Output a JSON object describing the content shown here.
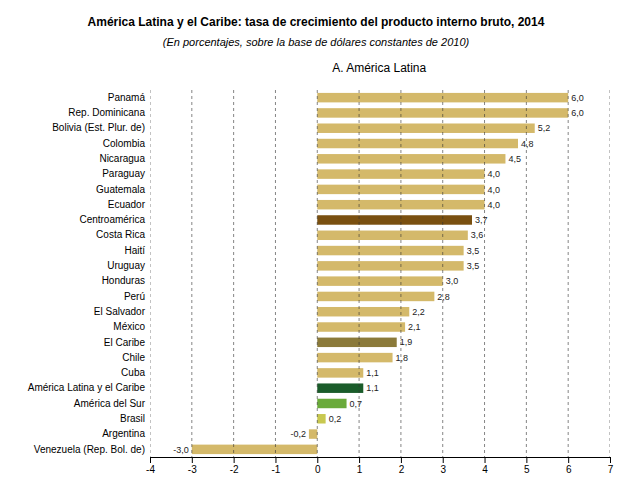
{
  "chart_data": {
    "type": "bar",
    "orientation": "horizontal",
    "title": "América Latina y el Caribe: tasa de crecimiento del producto interno bruto, 2014",
    "subtitle": "(En porcentajes, sobre la base de dólares constantes de 2010)",
    "annotations": [
      "A. América Latina"
    ],
    "categories": [
      "Venezuela (Rep. Bol. de)",
      "Argentina",
      "Brasil",
      "América del Sur",
      "América Latina y el Caribe",
      "Cuba",
      "Chile",
      "El Caribe",
      "México",
      "El Salvador",
      "Perú",
      "Honduras",
      "Uruguay",
      "Haití",
      "Costa Rica",
      "Centroamérica",
      "Ecuador",
      "Guatemala",
      "Paraguay",
      "Nicaragua",
      "Colombia",
      "Bolivia (Est. Plur. de)",
      "Rep. Dominicana",
      "Panamá"
    ],
    "values": [
      -3.0,
      -0.2,
      0.2,
      0.7,
      1.1,
      1.1,
      1.8,
      1.9,
      2.1,
      2.2,
      2.8,
      3.0,
      3.5,
      3.5,
      3.6,
      3.7,
      4.0,
      4.0,
      4.0,
      4.5,
      4.8,
      5.2,
      6.0,
      6.0
    ],
    "value_labels": [
      "-3,0",
      "-0,2",
      "0,2",
      "0,7",
      "1,1",
      "1,1",
      "1,8",
      "1,9",
      "2,1",
      "2,2",
      "2,8",
      "3,0",
      "3,5",
      "3,5",
      "3,6",
      "3,7",
      "4,0",
      "4,0",
      "4,0",
      "4,5",
      "4,8",
      "5,2",
      "6,0",
      "6,0"
    ],
    "colors": [
      "#d4b96a",
      "#d4b96a",
      "#c8c850",
      "#6aaa3a",
      "#1a5c2a",
      "#d4b96a",
      "#d4b96a",
      "#8b7a3a",
      "#d4b96a",
      "#d4b96a",
      "#d4b96a",
      "#d4b96a",
      "#d4b96a",
      "#d4b96a",
      "#d4b96a",
      "#7a5010",
      "#d4b96a",
      "#d4b96a",
      "#d4b96a",
      "#d4b96a",
      "#d4b96a",
      "#d4b96a",
      "#d4b96a",
      "#d4b96a"
    ],
    "xlim": [
      -4,
      7
    ],
    "xticks": [
      -4,
      -3,
      -2,
      -1,
      0,
      1,
      2,
      3,
      4,
      5,
      6,
      7
    ],
    "grid": true,
    "data_labels": true
  }
}
